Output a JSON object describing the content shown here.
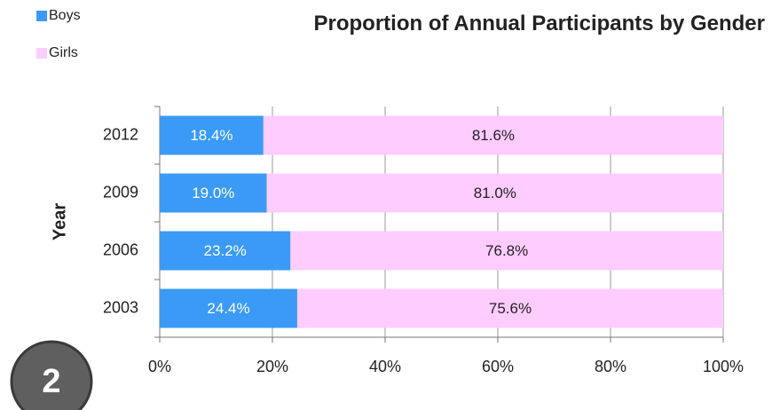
{
  "badge": "2",
  "chart_data": {
    "type": "stacked-barh",
    "title": "Proportion of Annual Participants by Gender",
    "y_label": "Year",
    "categories": [
      "2012",
      "2009",
      "2006",
      "2003"
    ],
    "series": [
      {
        "name": "Boys",
        "color": "#3a9af6",
        "values": [
          18.4,
          19.0,
          23.2,
          24.4
        ],
        "value_labels": [
          "18.4%",
          "19.0%",
          "23.2%",
          "24.4%"
        ],
        "label_color": "#ffffff"
      },
      {
        "name": "Girls",
        "color": "#ffccff",
        "values": [
          81.6,
          81.0,
          76.8,
          75.6
        ],
        "value_labels": [
          "81.6%",
          "81.0%",
          "76.8%",
          "75.6%"
        ],
        "label_color": "#222222"
      }
    ],
    "xlim": [
      0,
      100
    ],
    "xticks": [
      {
        "value": 0,
        "label": "0%"
      },
      {
        "value": 20,
        "label": "20%"
      },
      {
        "value": 40,
        "label": "40%"
      },
      {
        "value": 60,
        "label": "60%"
      },
      {
        "value": 80,
        "label": "80%"
      },
      {
        "value": 100,
        "label": "100%"
      }
    ],
    "grid": true,
    "legend": "top-left"
  }
}
